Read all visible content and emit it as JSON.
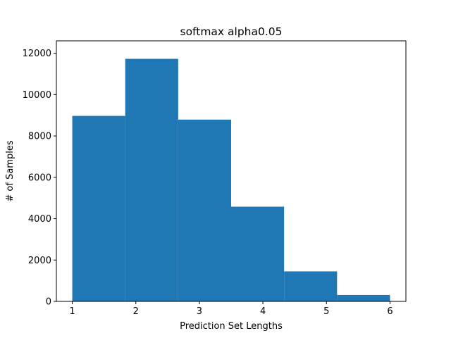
{
  "chart_data": {
    "type": "bar",
    "title": "softmax alpha0.05",
    "xlabel": "Prediction Set Lengths",
    "ylabel": "# of Samples",
    "bins": [
      {
        "start": 1.0,
        "end": 1.8333,
        "value": 8970
      },
      {
        "start": 1.8333,
        "end": 2.6667,
        "value": 11730
      },
      {
        "start": 2.6667,
        "end": 3.5,
        "value": 8790
      },
      {
        "start": 3.5,
        "end": 4.3333,
        "value": 4580
      },
      {
        "start": 4.3333,
        "end": 5.1667,
        "value": 1450
      },
      {
        "start": 5.1667,
        "end": 6.0,
        "value": 310
      }
    ],
    "xlim": [
      0.75,
      6.25
    ],
    "ylim": [
      0,
      12600
    ],
    "xticks": [
      1,
      2,
      3,
      4,
      5,
      6
    ],
    "xtick_labels": [
      "1",
      "2",
      "3",
      "4",
      "5",
      "6"
    ],
    "yticks": [
      0,
      2000,
      4000,
      6000,
      8000,
      10000,
      12000
    ],
    "ytick_labels": [
      "0",
      "2000",
      "4000",
      "6000",
      "8000",
      "10000",
      "12000"
    ],
    "bar_color": "#1f77b4",
    "grid": false,
    "legend": "none"
  }
}
